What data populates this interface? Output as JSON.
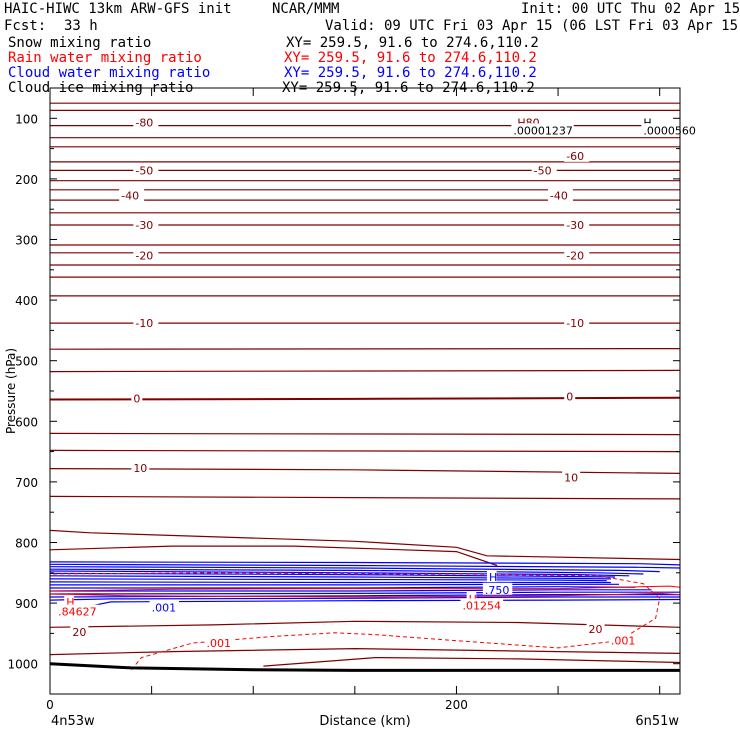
{
  "header": {
    "model": "HAIC-HIWC 13km ARW-GFS init",
    "org": "NCAR/MMM",
    "init": "Init: 00 UTC Thu 02 Apr 15",
    "fcst_label": "Fcst:",
    "fcst_value": "33 h",
    "valid": "Valid: 09 UTC Fri 03 Apr 15 (06 LST Fri 03 Apr 15)"
  },
  "fields": [
    {
      "name": "Snow mixing ratio",
      "xy": "XY= 259.5, 91.6 to 274.6,110.2",
      "color": "#000000"
    },
    {
      "name": "Rain water mixing ratio",
      "xy": "XY= 259.5, 91.6 to 274.6,110.2",
      "color": "#ff0000"
    },
    {
      "name": "Cloud water mixing ratio",
      "xy": "XY= 259.5, 91.6 to 274.6,110.2",
      "color": "#0000ff"
    },
    {
      "name": "Cloud ice mixing ratio",
      "xy": "XY= 259.5, 91.6 to 274.6,110.2",
      "color": "#000000"
    }
  ],
  "chart_data": {
    "type": "cross-section contour",
    "xlabel": "Distance (km)",
    "ylabel": "Pressure (hPa)",
    "xlim": [
      0,
      310
    ],
    "ylim": [
      1050,
      50
    ],
    "x_ticks": [
      0,
      50,
      100,
      150,
      200,
      250,
      300
    ],
    "x_tick_labels": [
      {
        "x": 0,
        "text": "0"
      },
      {
        "x": 200,
        "text": "200"
      }
    ],
    "y_ticks": [
      100,
      200,
      300,
      400,
      500,
      600,
      700,
      800,
      900,
      1000
    ],
    "endpoints": {
      "left": "4n53w",
      "right": "6n51w"
    },
    "colors": {
      "temperature": "#800000",
      "rain": "#ff0000",
      "cloud": "#0000ff",
      "terrain": "#000000"
    },
    "temperature_isotherms": [
      {
        "points": [
          [
            0,
            75
          ],
          [
            310,
            75
          ]
        ]
      },
      {
        "points": [
          [
            0,
            87
          ],
          [
            310,
            87
          ]
        ]
      },
      {
        "points": [
          [
            0,
            112
          ],
          [
            310,
            112
          ]
        ]
      },
      {
        "points": [
          [
            0,
            132
          ],
          [
            310,
            132
          ]
        ]
      },
      {
        "points": [
          [
            0,
            147
          ],
          [
            310,
            147
          ]
        ]
      },
      {
        "points": [
          [
            0,
            172
          ],
          [
            310,
            172
          ]
        ]
      },
      {
        "points": [
          [
            0,
            186
          ],
          [
            310,
            186
          ]
        ]
      },
      {
        "points": [
          [
            0,
            203
          ],
          [
            310,
            203
          ]
        ]
      },
      {
        "points": [
          [
            0,
            218
          ],
          [
            310,
            218
          ]
        ]
      },
      {
        "points": [
          [
            0,
            235
          ],
          [
            310,
            235
          ]
        ]
      },
      {
        "points": [
          [
            0,
            256
          ],
          [
            310,
            256
          ]
        ]
      },
      {
        "points": [
          [
            0,
            276
          ],
          [
            310,
            276
          ]
        ]
      },
      {
        "points": [
          [
            0,
            309
          ],
          [
            310,
            309
          ]
        ]
      },
      {
        "points": [
          [
            0,
            322
          ],
          [
            310,
            322
          ]
        ]
      },
      {
        "points": [
          [
            0,
            342
          ],
          [
            310,
            342
          ]
        ]
      },
      {
        "points": [
          [
            0,
            362
          ],
          [
            310,
            362
          ]
        ]
      },
      {
        "points": [
          [
            0,
            393
          ],
          [
            310,
            393
          ]
        ]
      },
      {
        "points": [
          [
            0,
            438
          ],
          [
            310,
            438
          ]
        ]
      },
      {
        "points": [
          [
            0,
            481
          ],
          [
            310,
            480
          ]
        ]
      },
      {
        "points": [
          [
            0,
            518
          ],
          [
            310,
            516
          ]
        ]
      },
      {
        "points": [
          [
            0,
            564
          ],
          [
            150,
            563
          ],
          [
            310,
            561
          ]
        ]
      },
      {
        "points": [
          [
            0,
            620
          ],
          [
            310,
            622
          ]
        ]
      },
      {
        "points": [
          [
            0,
            648
          ],
          [
            310,
            650
          ]
        ]
      },
      {
        "points": [
          [
            0,
            678
          ],
          [
            150,
            680
          ],
          [
            310,
            686
          ]
        ]
      },
      {
        "points": [
          [
            0,
            724
          ],
          [
            310,
            728
          ]
        ]
      },
      {
        "points": [
          [
            0,
            780
          ],
          [
            20,
            784
          ],
          [
            150,
            798
          ],
          [
            200,
            808
          ],
          [
            215,
            822
          ],
          [
            310,
            828
          ]
        ]
      },
      {
        "points": [
          [
            0,
            812
          ],
          [
            60,
            806
          ],
          [
            120,
            806
          ],
          [
            200,
            815
          ],
          [
            220,
            838
          ]
        ]
      },
      {
        "points": [
          [
            0,
            940
          ],
          [
            80,
            936
          ],
          [
            150,
            930
          ],
          [
            230,
            932
          ],
          [
            310,
            940
          ]
        ]
      },
      {
        "points": [
          [
            0,
            985
          ],
          [
            60,
            980
          ],
          [
            150,
            975
          ],
          [
            310,
            983
          ]
        ]
      },
      {
        "points": [
          [
            105,
            1004
          ],
          [
            160,
            990
          ],
          [
            230,
            992
          ],
          [
            310,
            998
          ]
        ]
      }
    ],
    "temperature_labels": [
      {
        "x": 42,
        "p": 107,
        "text": "-80"
      },
      {
        "x": 230,
        "p": 107,
        "text": "H80"
      },
      {
        "x": 254,
        "p": 162,
        "text": "-60"
      },
      {
        "x": 42,
        "p": 186,
        "text": "-50"
      },
      {
        "x": 238,
        "p": 186,
        "text": "-50"
      },
      {
        "x": 35,
        "p": 227,
        "text": "-40"
      },
      {
        "x": 246,
        "p": 227,
        "text": "-40"
      },
      {
        "x": 42,
        "p": 276,
        "text": "-30"
      },
      {
        "x": 254,
        "p": 276,
        "text": "-30"
      },
      {
        "x": 42,
        "p": 326,
        "text": "-20"
      },
      {
        "x": 254,
        "p": 326,
        "text": "-20"
      },
      {
        "x": 42,
        "p": 438,
        "text": "-10"
      },
      {
        "x": 254,
        "p": 438,
        "text": "-10"
      },
      {
        "x": 41,
        "p": 562,
        "text": "0"
      },
      {
        "x": 254,
        "p": 559,
        "text": "0"
      },
      {
        "x": 41,
        "p": 677,
        "text": "10"
      },
      {
        "x": 253,
        "p": 693,
        "text": "10"
      },
      {
        "x": 11,
        "p": 948,
        "text": "20"
      },
      {
        "x": 265,
        "p": 943,
        "text": "20"
      }
    ],
    "extrema_labels": [
      {
        "x": 228,
        "p": 120,
        "text": ".00001237",
        "color": "#000000"
      },
      {
        "x": 292,
        "p": 107,
        "text": "H",
        "color": "#000000"
      },
      {
        "x": 292,
        "p": 120,
        "text": ".0000560",
        "color": "#000000"
      },
      {
        "x": 216,
        "p": 857,
        "text": "H",
        "color": "#0000ff"
      },
      {
        "x": 214,
        "p": 878,
        "text": ".750",
        "color": "#0000ff"
      },
      {
        "x": 206,
        "p": 893,
        "text": "H",
        "color": "#ff0000"
      },
      {
        "x": 203,
        "p": 904,
        "text": ".01254",
        "color": "#ff0000"
      },
      {
        "x": 8,
        "p": 898,
        "text": "H",
        "color": "#ff0000"
      },
      {
        "x": 4,
        "p": 914,
        "text": ".84627",
        "color": "#ff0000"
      },
      {
        "x": 50,
        "p": 907,
        "text": ".001",
        "color": "#0000ff"
      },
      {
        "x": 77,
        "p": 966,
        "text": ".001",
        "color": "#ff0000"
      },
      {
        "x": 276,
        "p": 962,
        "text": ".001",
        "color": "#ff0000"
      }
    ],
    "cloud_water_contours": [
      {
        "points": [
          [
            0,
            832
          ],
          [
            150,
            833
          ],
          [
            290,
            835
          ],
          [
            310,
            837
          ]
        ]
      },
      {
        "points": [
          [
            0,
            836
          ],
          [
            150,
            838
          ],
          [
            290,
            841
          ],
          [
            310,
            842
          ]
        ]
      },
      {
        "points": [
          [
            0,
            840
          ],
          [
            150,
            842
          ],
          [
            280,
            846
          ],
          [
            300,
            848
          ]
        ]
      },
      {
        "points": [
          [
            0,
            844
          ],
          [
            150,
            846
          ],
          [
            270,
            850
          ],
          [
            292,
            852
          ]
        ]
      },
      {
        "points": [
          [
            0,
            847
          ],
          [
            150,
            850
          ],
          [
            260,
            853
          ],
          [
            285,
            855
          ]
        ]
      },
      {
        "points": [
          [
            0,
            851
          ],
          [
            150,
            853
          ],
          [
            250,
            856
          ],
          [
            278,
            857
          ]
        ]
      },
      {
        "points": [
          [
            0,
            855
          ],
          [
            150,
            857
          ],
          [
            250,
            859
          ],
          [
            276,
            860
          ]
        ]
      },
      {
        "points": [
          [
            0,
            860
          ],
          [
            150,
            861
          ],
          [
            250,
            862
          ],
          [
            274,
            863
          ]
        ]
      },
      {
        "points": [
          [
            0,
            865
          ],
          [
            150,
            866
          ],
          [
            250,
            866
          ],
          [
            276,
            866
          ]
        ]
      },
      {
        "points": [
          [
            0,
            870
          ],
          [
            150,
            870
          ],
          [
            250,
            869
          ],
          [
            280,
            869
          ]
        ]
      },
      {
        "points": [
          [
            0,
            875
          ],
          [
            150,
            875
          ],
          [
            250,
            873
          ],
          [
            288,
            874
          ]
        ]
      },
      {
        "points": [
          [
            0,
            880
          ],
          [
            150,
            880
          ],
          [
            250,
            878
          ],
          [
            296,
            878
          ]
        ]
      },
      {
        "points": [
          [
            0,
            885
          ],
          [
            150,
            884
          ],
          [
            250,
            882
          ],
          [
            310,
            882
          ]
        ]
      },
      {
        "points": [
          [
            0,
            890
          ],
          [
            150,
            888
          ],
          [
            250,
            886
          ],
          [
            310,
            886
          ]
        ]
      },
      {
        "points": [
          [
            0,
            895
          ],
          [
            30,
            893
          ],
          [
            150,
            892
          ],
          [
            250,
            890
          ],
          [
            310,
            890
          ]
        ]
      },
      {
        "points": [
          [
            18,
            906
          ],
          [
            30,
            898
          ],
          [
            150,
            896
          ],
          [
            250,
            895
          ],
          [
            310,
            894
          ]
        ]
      }
    ],
    "rain_contours": [
      {
        "dashed": false,
        "points": [
          [
            0,
            885
          ],
          [
            40,
            888
          ],
          [
            150,
            890
          ],
          [
            250,
            888
          ],
          [
            300,
            884
          ],
          [
            310,
            886
          ]
        ]
      },
      {
        "dashed": false,
        "points": [
          [
            0,
            880
          ],
          [
            60,
            877
          ],
          [
            150,
            876
          ],
          [
            250,
            876
          ],
          [
            305,
            872
          ],
          [
            310,
            874
          ]
        ]
      },
      {
        "dashed": true,
        "points": [
          [
            40,
            1010
          ],
          [
            45,
            990
          ],
          [
            70,
            966
          ],
          [
            110,
            955
          ],
          [
            140,
            949
          ],
          [
            160,
            952
          ],
          [
            200,
            962
          ],
          [
            250,
            974
          ],
          [
            280,
            962
          ],
          [
            298,
            925
          ],
          [
            300,
            892
          ],
          [
            292,
            868
          ],
          [
            270,
            855
          ],
          [
            200,
            852
          ],
          [
            150,
            852
          ],
          [
            90,
            850
          ],
          [
            40,
            851
          ],
          [
            0,
            852
          ]
        ]
      }
    ],
    "terrain": [
      [
        0,
        1000
      ],
      [
        40,
        1007
      ],
      [
        100,
        1010
      ],
      [
        150,
        1011
      ],
      [
        200,
        1011
      ],
      [
        250,
        1011
      ],
      [
        300,
        1011
      ],
      [
        310,
        1011
      ]
    ]
  }
}
